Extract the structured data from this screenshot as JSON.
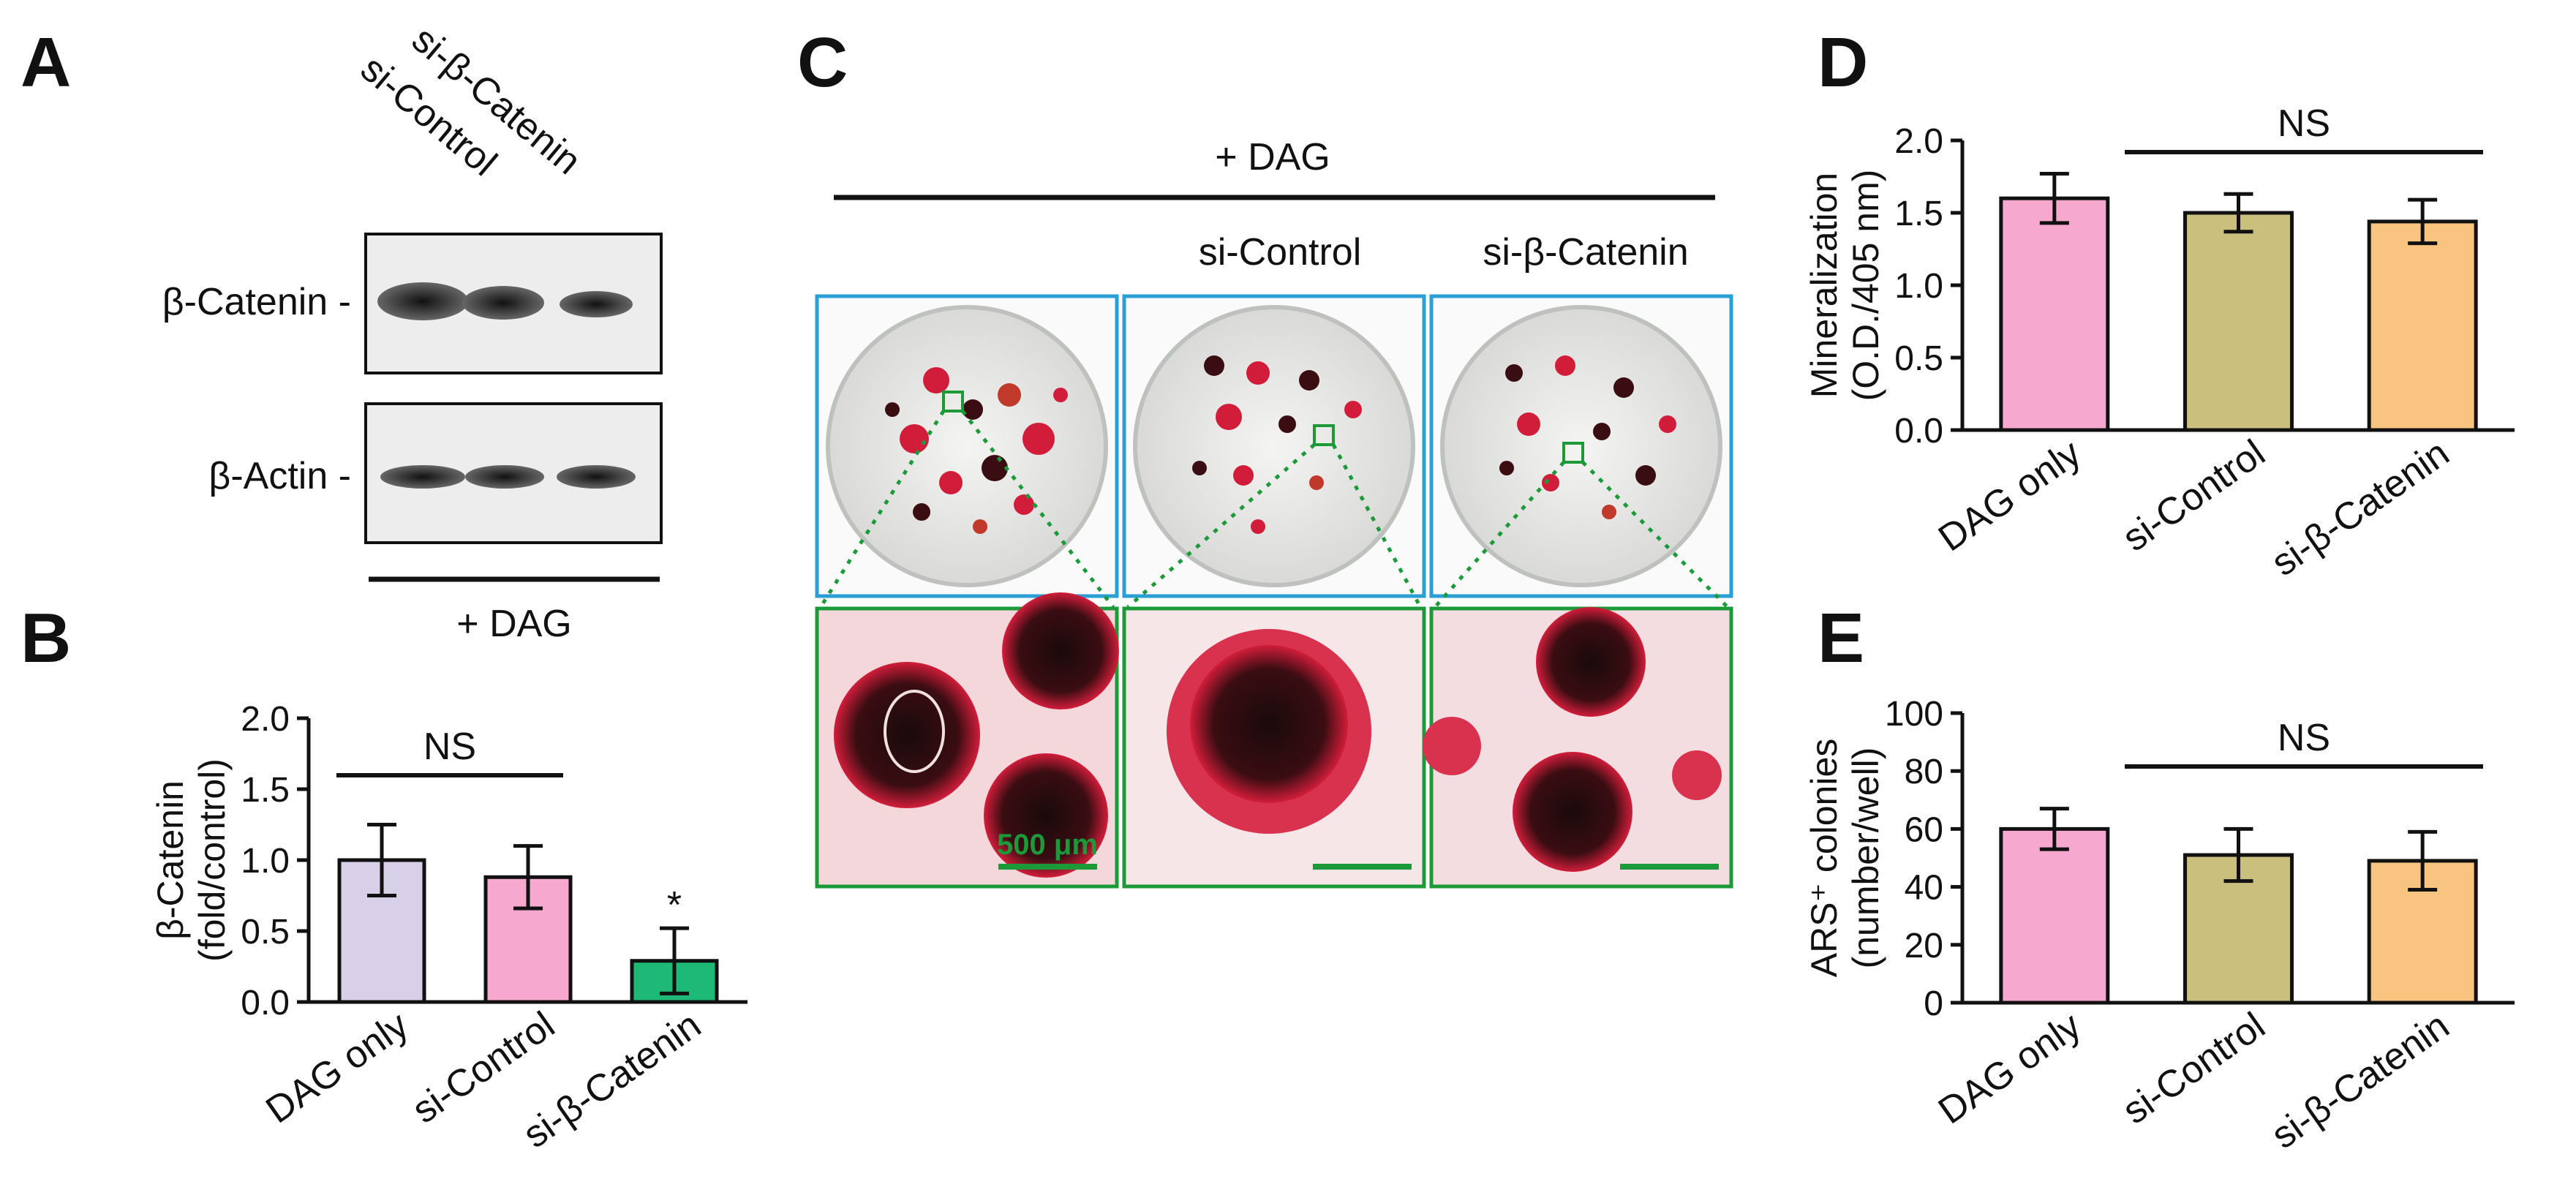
{
  "panels": {
    "A": "A",
    "B": "B",
    "C": "C",
    "D": "D",
    "E": "E"
  },
  "panel_a": {
    "lanes": [
      "si-Control",
      "si-β-Catenin"
    ],
    "bands": [
      "β-Catenin -",
      "β-Actin -"
    ],
    "treatment": "+ DAG"
  },
  "panel_c": {
    "treatment": "+ DAG",
    "columns": [
      "",
      "si-Control",
      "si-β-Catenin"
    ],
    "scale_bar": "500 μm"
  },
  "chart_data": [
    {
      "id": "B",
      "type": "bar",
      "categories": [
        "DAG only",
        "si-Control",
        "si-β-Catenin"
      ],
      "values": [
        1.0,
        0.88,
        0.29
      ],
      "errors": [
        0.25,
        0.22,
        0.23
      ],
      "colors": [
        "#d8d0e8",
        "#f7a8cf",
        "#1fb977"
      ],
      "ylabel": "β-Catenin",
      "ylabel2": "(fold/control)",
      "ylim": [
        0,
        2.0
      ],
      "yticks": [
        "0.0",
        "0.5",
        "1.0",
        "1.5",
        "2.0"
      ],
      "significance": "NS",
      "star": "*"
    },
    {
      "id": "D",
      "type": "bar",
      "categories": [
        "DAG only",
        "si-Control",
        "si-β-Catenin"
      ],
      "values": [
        1.6,
        1.5,
        1.44
      ],
      "errors": [
        0.17,
        0.13,
        0.15
      ],
      "colors": [
        "#f7a8cf",
        "#cbbf7e",
        "#f9c380"
      ],
      "ylabel": "Mineralization",
      "ylabel2": "(O.D./405 nm)",
      "ylim": [
        0,
        2.0
      ],
      "yticks": [
        "0.0",
        "0.5",
        "1.0",
        "1.5",
        "2.0"
      ],
      "significance": "NS"
    },
    {
      "id": "E",
      "type": "bar",
      "categories": [
        "DAG only",
        "si-Control",
        "si-β-Catenin"
      ],
      "values": [
        60,
        51,
        49
      ],
      "errors": [
        7,
        9,
        10
      ],
      "colors": [
        "#f7a8cf",
        "#cbbf7e",
        "#f9c380"
      ],
      "ylabel": "ARS⁺ colonies",
      "ylabel2": "(number/well)",
      "ylim": [
        0,
        100
      ],
      "yticks": [
        "0",
        "20",
        "40",
        "60",
        "80",
        "100"
      ],
      "significance": "NS"
    }
  ]
}
